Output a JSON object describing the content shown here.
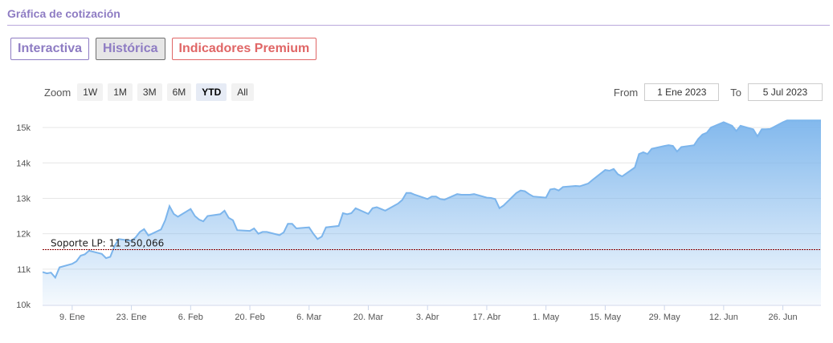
{
  "header": {
    "title": "Gráfica de cotización"
  },
  "tabs": [
    {
      "label": "Interactiva"
    },
    {
      "label": "Histórica"
    },
    {
      "label": "Indicadores Premium"
    }
  ],
  "zoom": {
    "label": "Zoom",
    "buttons": [
      "1W",
      "1M",
      "3M",
      "6M",
      "YTD",
      "All"
    ],
    "active": "YTD"
  },
  "range": {
    "from_label": "From",
    "from_value": "1 Ene 2023",
    "to_label": "To",
    "to_value": "5 Jul 2023"
  },
  "colors": {
    "line": "#7cb5ec",
    "support": "#8b0000",
    "accent": "#8e7cc3"
  },
  "chart_data": {
    "type": "area",
    "ylim": [
      10000,
      15500
    ],
    "y_ticks": [
      10000,
      11000,
      12000,
      13000,
      14000,
      15000
    ],
    "y_tick_labels": [
      "10k",
      "11k",
      "12k",
      "13k",
      "14k",
      "15k"
    ],
    "x_range": [
      "2023-01-02",
      "2023-07-05"
    ],
    "x_ticks": [
      {
        "date": "2023-01-09",
        "label": "9. Ene"
      },
      {
        "date": "2023-01-23",
        "label": "23. Ene"
      },
      {
        "date": "2023-02-06",
        "label": "6. Feb"
      },
      {
        "date": "2023-02-20",
        "label": "20. Feb"
      },
      {
        "date": "2023-03-06",
        "label": "6. Mar"
      },
      {
        "date": "2023-03-20",
        "label": "20. Mar"
      },
      {
        "date": "2023-04-03",
        "label": "3. Abr"
      },
      {
        "date": "2023-04-17",
        "label": "17. Abr"
      },
      {
        "date": "2023-05-01",
        "label": "1. May"
      },
      {
        "date": "2023-05-15",
        "label": "15. May"
      },
      {
        "date": "2023-05-29",
        "label": "29. May"
      },
      {
        "date": "2023-06-12",
        "label": "12. Jun"
      },
      {
        "date": "2023-06-26",
        "label": "26. Jun"
      }
    ],
    "support": {
      "label": "Soporte LP: 11 550,066",
      "value": 11550.066
    },
    "series": [
      {
        "x": [
          "2023-01-02",
          "2023-01-03",
          "2023-01-04",
          "2023-01-05",
          "2023-01-06",
          "2023-01-09",
          "2023-01-10",
          "2023-01-11",
          "2023-01-12",
          "2023-01-13",
          "2023-01-16",
          "2023-01-17",
          "2023-01-18",
          "2023-01-19",
          "2023-01-20",
          "2023-01-23",
          "2023-01-24",
          "2023-01-25",
          "2023-01-26",
          "2023-01-27",
          "2023-01-30",
          "2023-01-31",
          "2023-02-01",
          "2023-02-02",
          "2023-02-03",
          "2023-02-06",
          "2023-02-07",
          "2023-02-08",
          "2023-02-09",
          "2023-02-10",
          "2023-02-13",
          "2023-02-14",
          "2023-02-15",
          "2023-02-16",
          "2023-02-17",
          "2023-02-20",
          "2023-02-21",
          "2023-02-22",
          "2023-02-23",
          "2023-02-24",
          "2023-02-27",
          "2023-02-28",
          "2023-03-01",
          "2023-03-02",
          "2023-03-03",
          "2023-03-06",
          "2023-03-07",
          "2023-03-08",
          "2023-03-09",
          "2023-03-10",
          "2023-03-13",
          "2023-03-14",
          "2023-03-15",
          "2023-03-16",
          "2023-03-17",
          "2023-03-20",
          "2023-03-21",
          "2023-03-22",
          "2023-03-23",
          "2023-03-24",
          "2023-03-27",
          "2023-03-28",
          "2023-03-29",
          "2023-03-30",
          "2023-03-31",
          "2023-04-03",
          "2023-04-04",
          "2023-04-05",
          "2023-04-06",
          "2023-04-07",
          "2023-04-10",
          "2023-04-11",
          "2023-04-12",
          "2023-04-13",
          "2023-04-14",
          "2023-04-17",
          "2023-04-18",
          "2023-04-19",
          "2023-04-20",
          "2023-04-21",
          "2023-04-24",
          "2023-04-25",
          "2023-04-26",
          "2023-04-27",
          "2023-04-28",
          "2023-05-01",
          "2023-05-02",
          "2023-05-03",
          "2023-05-04",
          "2023-05-05",
          "2023-05-08",
          "2023-05-09",
          "2023-05-10",
          "2023-05-11",
          "2023-05-12",
          "2023-05-15",
          "2023-05-16",
          "2023-05-17",
          "2023-05-18",
          "2023-05-19",
          "2023-05-22",
          "2023-05-23",
          "2023-05-24",
          "2023-05-25",
          "2023-05-26",
          "2023-05-29",
          "2023-05-30",
          "2023-05-31",
          "2023-06-01",
          "2023-06-02",
          "2023-06-05",
          "2023-06-06",
          "2023-06-07",
          "2023-06-08",
          "2023-06-09",
          "2023-06-12",
          "2023-06-13",
          "2023-06-14",
          "2023-06-15",
          "2023-06-16",
          "2023-06-19",
          "2023-06-20",
          "2023-06-21",
          "2023-06-22",
          "2023-06-23",
          "2023-06-26",
          "2023-06-27",
          "2023-06-28",
          "2023-06-29",
          "2023-06-30",
          "2023-07-03",
          "2023-07-04",
          "2023-07-05"
        ],
        "values": [
          10920,
          10880,
          10900,
          10760,
          11050,
          11150,
          11220,
          11380,
          11420,
          11520,
          11430,
          11310,
          11350,
          11650,
          11850,
          11800,
          11900,
          12050,
          12130,
          11950,
          12120,
          12380,
          12780,
          12560,
          12480,
          12700,
          12500,
          12400,
          12350,
          12500,
          12550,
          12650,
          12450,
          12380,
          12100,
          12080,
          12150,
          12000,
          12050,
          12050,
          11960,
          12040,
          12280,
          12280,
          12150,
          12180,
          12000,
          11850,
          11920,
          12180,
          12220,
          12580,
          12550,
          12580,
          12720,
          12560,
          12720,
          12750,
          12700,
          12650,
          12850,
          12950,
          13150,
          13150,
          13100,
          12980,
          13050,
          13050,
          12980,
          12960,
          13120,
          13100,
          13100,
          13100,
          13120,
          13020,
          13010,
          12980,
          12720,
          12800,
          13150,
          13220,
          13200,
          13120,
          13050,
          13020,
          13250,
          13270,
          13220,
          13320,
          13350,
          13340,
          13380,
          13420,
          13520,
          13800,
          13780,
          13830,
          13680,
          13620,
          13870,
          14250,
          14300,
          14250,
          14400,
          14480,
          14500,
          14480,
          14320,
          14450,
          14500,
          14680,
          14800,
          14850,
          15000,
          15150,
          15100,
          15050,
          14900,
          15050,
          14950,
          14750,
          14950,
          14950,
          14960,
          15150,
          15200,
          15200,
          15200,
          15200,
          15200,
          15200,
          15200
        ]
      }
    ]
  }
}
